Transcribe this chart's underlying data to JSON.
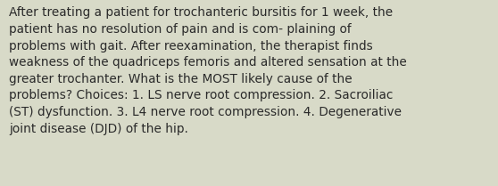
{
  "text": "After treating a patient for trochanteric bursitis for 1 week, the\npatient has no resolution of pain and is com- plaining of\nproblems with gait. After reexamination, the therapist finds\nweakness of the quadriceps femoris and altered sensation at the\ngreater trochanter. What is the MOST likely cause of the\nproblems? Choices: 1. LS nerve root compression. 2. Sacroiliac\n(ST) dysfunction. 3. L4 nerve root compression. 4. Degenerative\njoint disease (DJD) of the hip.",
  "background_color": "#d8dac8",
  "text_color": "#2a2a2a",
  "font_size": 9.8,
  "fig_width": 5.58,
  "fig_height": 2.09,
  "dpi": 100
}
